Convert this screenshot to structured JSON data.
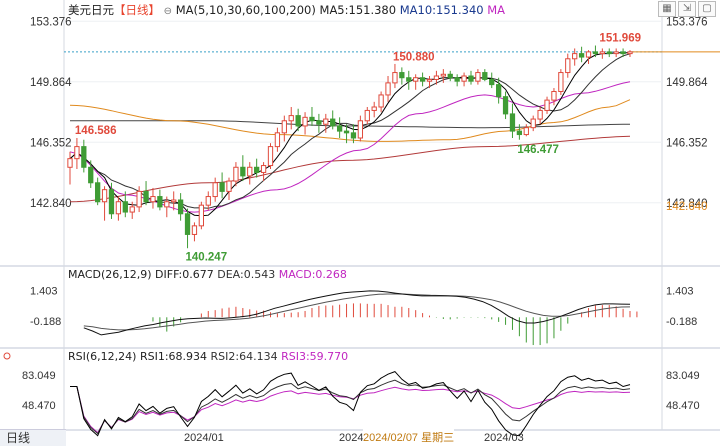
{
  "header": {
    "symbol": "美元日元",
    "period": "【日线】",
    "ma_label": "MA(5,10,30,60,100,200)",
    "ma5": "MA5:151.380",
    "ma10": "MA10:151.340",
    "ma_extra": "MA"
  },
  "macd_header": {
    "name": "MACD(26,12,9)",
    "diff": "DIFF:0.677",
    "dea": "DEA:0.543",
    "macd": "MACD:0.268"
  },
  "rsi_header": {
    "name": "RSI(6,12,24)",
    "rsi1": "RSI1:68.934",
    "rsi2": "RSI2:64.134",
    "rsi3": "RSI3:59.770"
  },
  "footer": {
    "tab": "日线",
    "date_tag": "2024/02/07 星期三"
  },
  "colors": {
    "up": "#e04a3c",
    "down": "#3f9c35",
    "ma5": "#000000",
    "ma10": "#333333",
    "ma30": "#c026c0",
    "ma60": "#e08a1e",
    "ma100": "#444444",
    "ma200": "#b23a3a",
    "diff": "#111111",
    "dea": "#555555"
  },
  "chart_data": [
    {
      "type": "candlestick",
      "title": "美元日元【日线】",
      "ylim": [
        139.4,
        153.8
      ],
      "y_ticks": [
        153.376,
        149.864,
        146.352,
        142.84
      ],
      "x_labels": [
        "2024/01",
        "2024/02",
        "2024/03"
      ],
      "last_price": 151.6,
      "right_axis_marker": 142.64,
      "annotations": [
        {
          "text": "151.969",
          "type": "high"
        },
        {
          "text": "150.880",
          "type": "peak"
        },
        {
          "text": "146.586",
          "type": "peak"
        },
        {
          "text": "146.477",
          "type": "low"
        },
        {
          "text": "140.247",
          "type": "low"
        }
      ],
      "candles": [
        [
          144.9,
          145.8,
          143.9,
          145.4
        ],
        [
          145.4,
          146.6,
          144.8,
          146.1
        ],
        [
          146.1,
          146.5,
          144.6,
          144.9
        ],
        [
          144.9,
          145.3,
          143.7,
          144.0
        ],
        [
          144.0,
          144.3,
          142.7,
          142.9
        ],
        [
          142.9,
          143.8,
          141.8,
          143.6
        ],
        [
          143.6,
          144.0,
          141.9,
          142.2
        ],
        [
          142.2,
          143.2,
          141.8,
          142.9
        ],
        [
          142.9,
          143.5,
          142.0,
          142.3
        ],
        [
          142.3,
          142.9,
          141.9,
          142.6
        ],
        [
          142.6,
          143.8,
          142.3,
          143.5
        ],
        [
          143.5,
          144.1,
          142.7,
          142.9
        ],
        [
          142.9,
          143.7,
          142.5,
          143.2
        ],
        [
          143.2,
          143.6,
          142.4,
          142.6
        ],
        [
          142.6,
          143.2,
          142.0,
          142.9
        ],
        [
          142.9,
          143.5,
          142.4,
          143.0
        ],
        [
          143.0,
          143.4,
          141.8,
          142.2
        ],
        [
          142.2,
          142.5,
          140.2,
          141.0
        ],
        [
          141.0,
          141.7,
          140.6,
          141.5
        ],
        [
          141.5,
          142.9,
          141.3,
          142.7
        ],
        [
          142.7,
          143.5,
          142.4,
          143.2
        ],
        [
          143.2,
          144.3,
          142.9,
          144.0
        ],
        [
          144.0,
          144.6,
          143.1,
          143.5
        ],
        [
          143.5,
          144.3,
          143.0,
          144.1
        ],
        [
          144.1,
          145.2,
          143.8,
          144.9
        ],
        [
          144.9,
          145.6,
          144.1,
          144.4
        ],
        [
          144.4,
          145.2,
          143.9,
          144.9
        ],
        [
          144.9,
          145.4,
          144.3,
          144.6
        ],
        [
          144.6,
          145.2,
          144.1,
          145.0
        ],
        [
          145.0,
          146.3,
          144.8,
          146.1
        ],
        [
          146.1,
          147.2,
          145.8,
          146.9
        ],
        [
          146.9,
          147.9,
          146.4,
          147.6
        ],
        [
          147.6,
          148.4,
          147.1,
          147.9
        ],
        [
          147.9,
          148.3,
          147.0,
          147.3
        ],
        [
          147.3,
          148.1,
          146.8,
          147.8
        ],
        [
          147.8,
          148.4,
          147.3,
          147.6
        ],
        [
          147.6,
          148.0,
          146.9,
          147.4
        ],
        [
          147.4,
          148.0,
          146.9,
          147.7
        ],
        [
          147.7,
          148.2,
          147.1,
          147.3
        ],
        [
          147.3,
          147.8,
          146.6,
          147.0
        ],
        [
          147.0,
          147.4,
          146.3,
          146.9
        ],
        [
          146.9,
          147.4,
          146.3,
          146.6
        ],
        [
          146.6,
          147.9,
          146.4,
          147.6
        ],
        [
          147.6,
          148.4,
          147.4,
          148.2
        ],
        [
          148.2,
          148.7,
          147.8,
          148.4
        ],
        [
          148.4,
          149.3,
          148.1,
          149.1
        ],
        [
          149.1,
          150.2,
          148.7,
          149.8
        ],
        [
          149.8,
          150.9,
          149.5,
          150.4
        ],
        [
          150.4,
          150.7,
          149.7,
          150.1
        ],
        [
          150.1,
          150.5,
          149.4,
          149.9
        ],
        [
          149.9,
          150.3,
          149.4,
          150.1
        ],
        [
          150.1,
          150.4,
          149.6,
          149.9
        ],
        [
          149.9,
          150.2,
          149.5,
          150.0
        ],
        [
          150.0,
          150.5,
          149.7,
          150.2
        ],
        [
          150.2,
          150.6,
          149.8,
          150.3
        ],
        [
          150.3,
          150.5,
          149.9,
          150.1
        ],
        [
          150.1,
          150.3,
          149.6,
          149.9
        ],
        [
          149.9,
          150.4,
          149.6,
          150.2
        ],
        [
          150.2,
          150.5,
          149.7,
          149.9
        ],
        [
          149.9,
          150.6,
          149.7,
          150.4
        ],
        [
          150.4,
          150.6,
          149.9,
          150.0
        ],
        [
          150.0,
          150.4,
          149.5,
          149.7
        ],
        [
          149.7,
          150.1,
          148.6,
          149.0
        ],
        [
          149.0,
          149.3,
          147.7,
          148.0
        ],
        [
          148.0,
          148.6,
          146.6,
          147.0
        ],
        [
          147.0,
          147.4,
          146.5,
          146.8
        ],
        [
          146.8,
          147.4,
          146.7,
          147.2
        ],
        [
          147.2,
          147.9,
          147.0,
          147.7
        ],
        [
          147.7,
          148.4,
          147.4,
          148.2
        ],
        [
          148.2,
          149.0,
          148.0,
          148.8
        ],
        [
          148.8,
          149.5,
          148.5,
          149.3
        ],
        [
          149.3,
          150.6,
          149.1,
          150.4
        ],
        [
          150.4,
          151.5,
          150.1,
          151.2
        ],
        [
          151.2,
          151.8,
          150.8,
          151.5
        ],
        [
          151.5,
          151.9,
          151.0,
          151.3
        ],
        [
          151.3,
          151.7,
          150.9,
          151.6
        ],
        [
          151.6,
          151.97,
          151.3,
          151.5
        ],
        [
          151.5,
          151.8,
          151.2,
          151.6
        ],
        [
          151.6,
          151.8,
          151.3,
          151.5
        ],
        [
          151.5,
          151.8,
          151.3,
          151.6
        ],
        [
          151.6,
          151.8,
          151.3,
          151.5
        ],
        [
          151.5,
          151.7,
          151.3,
          151.6
        ]
      ],
      "ma_lines": {
        "ma30": {
          "anchors": [
            [
              0,
              145.8
            ],
            [
              8,
              143.3
            ],
            [
              18,
              142.3
            ],
            [
              30,
              143.6
            ],
            [
              42,
              145.9
            ],
            [
              50,
              148.0
            ],
            [
              60,
              149.1
            ],
            [
              67,
              148.4
            ],
            [
              74,
              149.2
            ],
            [
              82,
              149.9
            ]
          ]
        },
        "ma60": {
          "anchors": [
            [
              0,
              148.5
            ],
            [
              15,
              147.6
            ],
            [
              30,
              146.8
            ],
            [
              45,
              146.4
            ],
            [
              55,
              146.5
            ],
            [
              63,
              147.0
            ],
            [
              70,
              147.5
            ],
            [
              78,
              148.4
            ],
            [
              82,
              148.9
            ]
          ]
        },
        "ma100": {
          "anchors": [
            [
              0,
              147.6
            ],
            [
              20,
              147.6
            ],
            [
              40,
              147.3
            ],
            [
              60,
              147.2
            ],
            [
              82,
              147.4
            ]
          ]
        },
        "ma200": {
          "anchors": [
            [
              0,
              142.9
            ],
            [
              20,
              144.0
            ],
            [
              40,
              145.3
            ],
            [
              60,
              146.1
            ],
            [
              82,
              146.7
            ]
          ]
        }
      }
    },
    {
      "type": "macd",
      "title": "MACD(26,12,9)",
      "y_ticks": [
        1.403,
        -0.188
      ],
      "ylim": [
        -1.45,
        1.95
      ],
      "diff": [
        -0.55,
        -0.72,
        -0.92,
        -0.85,
        -0.78,
        -0.66,
        -0.55,
        -0.45,
        -0.38,
        -0.28,
        -0.2,
        -0.12,
        -0.08,
        -0.06,
        -0.04,
        -0.05,
        -0.06,
        -0.02,
        0.02,
        0.07,
        0.17,
        0.32,
        0.47,
        0.58,
        0.7,
        0.82,
        0.93,
        1.03,
        1.12,
        1.2,
        1.28,
        1.32,
        1.35,
        1.38,
        1.37,
        1.32,
        1.26,
        1.2,
        1.15,
        1.12,
        1.12,
        1.13,
        1.12,
        1.1,
        1.05,
        0.95,
        0.82,
        0.62,
        0.35,
        0.05,
        -0.18,
        -0.3,
        -0.3,
        -0.22,
        -0.1,
        0.05,
        0.22,
        0.4,
        0.55,
        0.65,
        0.7,
        0.7,
        0.69,
        0.68
      ],
      "dea": [
        -0.45,
        -0.5,
        -0.58,
        -0.63,
        -0.66,
        -0.66,
        -0.64,
        -0.6,
        -0.55,
        -0.49,
        -0.43,
        -0.37,
        -0.3,
        -0.25,
        -0.2,
        -0.17,
        -0.15,
        -0.12,
        -0.09,
        -0.05,
        0.02,
        0.1,
        0.2,
        0.3,
        0.4,
        0.5,
        0.6,
        0.7,
        0.8,
        0.88,
        0.96,
        1.03,
        1.1,
        1.16,
        1.2,
        1.22,
        1.22,
        1.21,
        1.19,
        1.17,
        1.15,
        1.14,
        1.13,
        1.12,
        1.1,
        1.06,
        1.0,
        0.92,
        0.8,
        0.65,
        0.48,
        0.32,
        0.2,
        0.1,
        0.05,
        0.05,
        0.1,
        0.18,
        0.27,
        0.36,
        0.44,
        0.5,
        0.54,
        0.543
      ],
      "hist_span": [
        12,
        82
      ]
    },
    {
      "type": "rsi",
      "title": "RSI(6,12,24)",
      "y_ticks": [
        83.049,
        48.47
      ],
      "ylim": [
        22,
        96
      ]
    }
  ]
}
